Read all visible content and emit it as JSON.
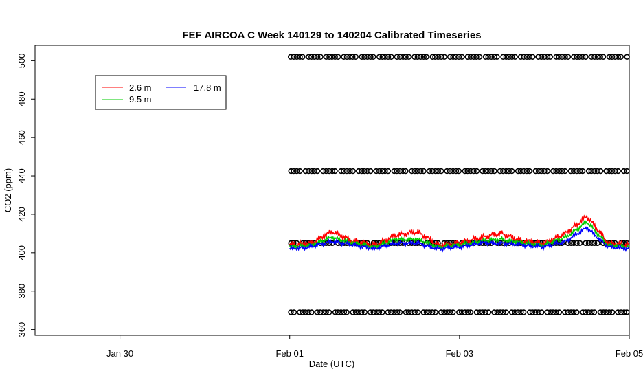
{
  "chart_data": {
    "type": "line",
    "title": "FEF AIRCOA C  Week 140129 to 140204  Calibrated Timeseries",
    "xlabel": "Date (UTC)",
    "ylabel": "CO2 (ppm)",
    "xlim": [
      "2014-01-29T00:00",
      "2014-02-05T00:00"
    ],
    "ylim": [
      357,
      508
    ],
    "x_ticks": [
      {
        "x": "2014-01-30T00:00",
        "label": "Jan 30"
      },
      {
        "x": "2014-02-01T00:00",
        "label": "Feb 01"
      },
      {
        "x": "2014-02-03T00:00",
        "label": "Feb 03"
      },
      {
        "x": "2014-02-05T00:00",
        "label": "Feb 05"
      }
    ],
    "y_ticks": [
      360,
      380,
      400,
      420,
      440,
      460,
      480,
      500
    ],
    "grid": false,
    "legend": {
      "position": "top-left",
      "entries": [
        {
          "name": "2.6 m",
          "color": "#ff0000"
        },
        {
          "name": "9.5 m",
          "color": "#00cc00"
        },
        {
          "name": "17.8 m",
          "color": "#0000ff"
        }
      ]
    },
    "series": [
      {
        "name": "2.6 m",
        "color": "#ff0000",
        "x": [
          "2014-02-01T00:00",
          "2014-02-01T06:00",
          "2014-02-01T12:00",
          "2014-02-01T18:00",
          "2014-02-02T00:00",
          "2014-02-02T06:00",
          "2014-02-02T12:00",
          "2014-02-02T18:00",
          "2014-02-03T00:00",
          "2014-02-03T06:00",
          "2014-02-03T12:00",
          "2014-02-03T18:00",
          "2014-02-04T00:00",
          "2014-02-04T06:00",
          "2014-02-04T12:00",
          "2014-02-04T18:00",
          "2014-02-05T00:00"
        ],
        "y": [
          404,
          405,
          411,
          406,
          404,
          409,
          411,
          404,
          405,
          408,
          410,
          406,
          405,
          410,
          419,
          405,
          404
        ]
      },
      {
        "name": "9.5 m",
        "color": "#00cc00",
        "x": [
          "2014-02-01T00:00",
          "2014-02-01T06:00",
          "2014-02-01T12:00",
          "2014-02-01T18:00",
          "2014-02-02T00:00",
          "2014-02-02T06:00",
          "2014-02-02T12:00",
          "2014-02-02T18:00",
          "2014-02-03T00:00",
          "2014-02-03T06:00",
          "2014-02-03T12:00",
          "2014-02-03T18:00",
          "2014-02-04T00:00",
          "2014-02-04T06:00",
          "2014-02-04T12:00",
          "2014-02-04T18:00",
          "2014-02-05T00:00"
        ],
        "y": [
          403,
          404,
          408,
          405,
          403,
          407,
          407,
          403,
          404,
          406,
          407,
          405,
          404,
          408,
          416,
          404,
          403
        ]
      },
      {
        "name": "17.8 m",
        "color": "#0000ff",
        "x": [
          "2014-02-01T00:00",
          "2014-02-01T06:00",
          "2014-02-01T12:00",
          "2014-02-01T18:00",
          "2014-02-02T00:00",
          "2014-02-02T06:00",
          "2014-02-02T12:00",
          "2014-02-02T18:00",
          "2014-02-03T00:00",
          "2014-02-03T06:00",
          "2014-02-03T12:00",
          "2014-02-03T18:00",
          "2014-02-04T00:00",
          "2014-02-04T06:00",
          "2014-02-04T12:00",
          "2014-02-04T18:00",
          "2014-02-05T00:00"
        ],
        "y": [
          402,
          403,
          406,
          404,
          402,
          405,
          405,
          402,
          403,
          405,
          405,
          404,
          403,
          406,
          413,
          403,
          402
        ]
      }
    ],
    "calibration_points": {
      "color": "#000000",
      "x_start": "2014-02-01T00:00",
      "x_end": "2014-02-05T00:00",
      "levels": [
        502,
        442.5,
        405,
        369
      ]
    }
  }
}
